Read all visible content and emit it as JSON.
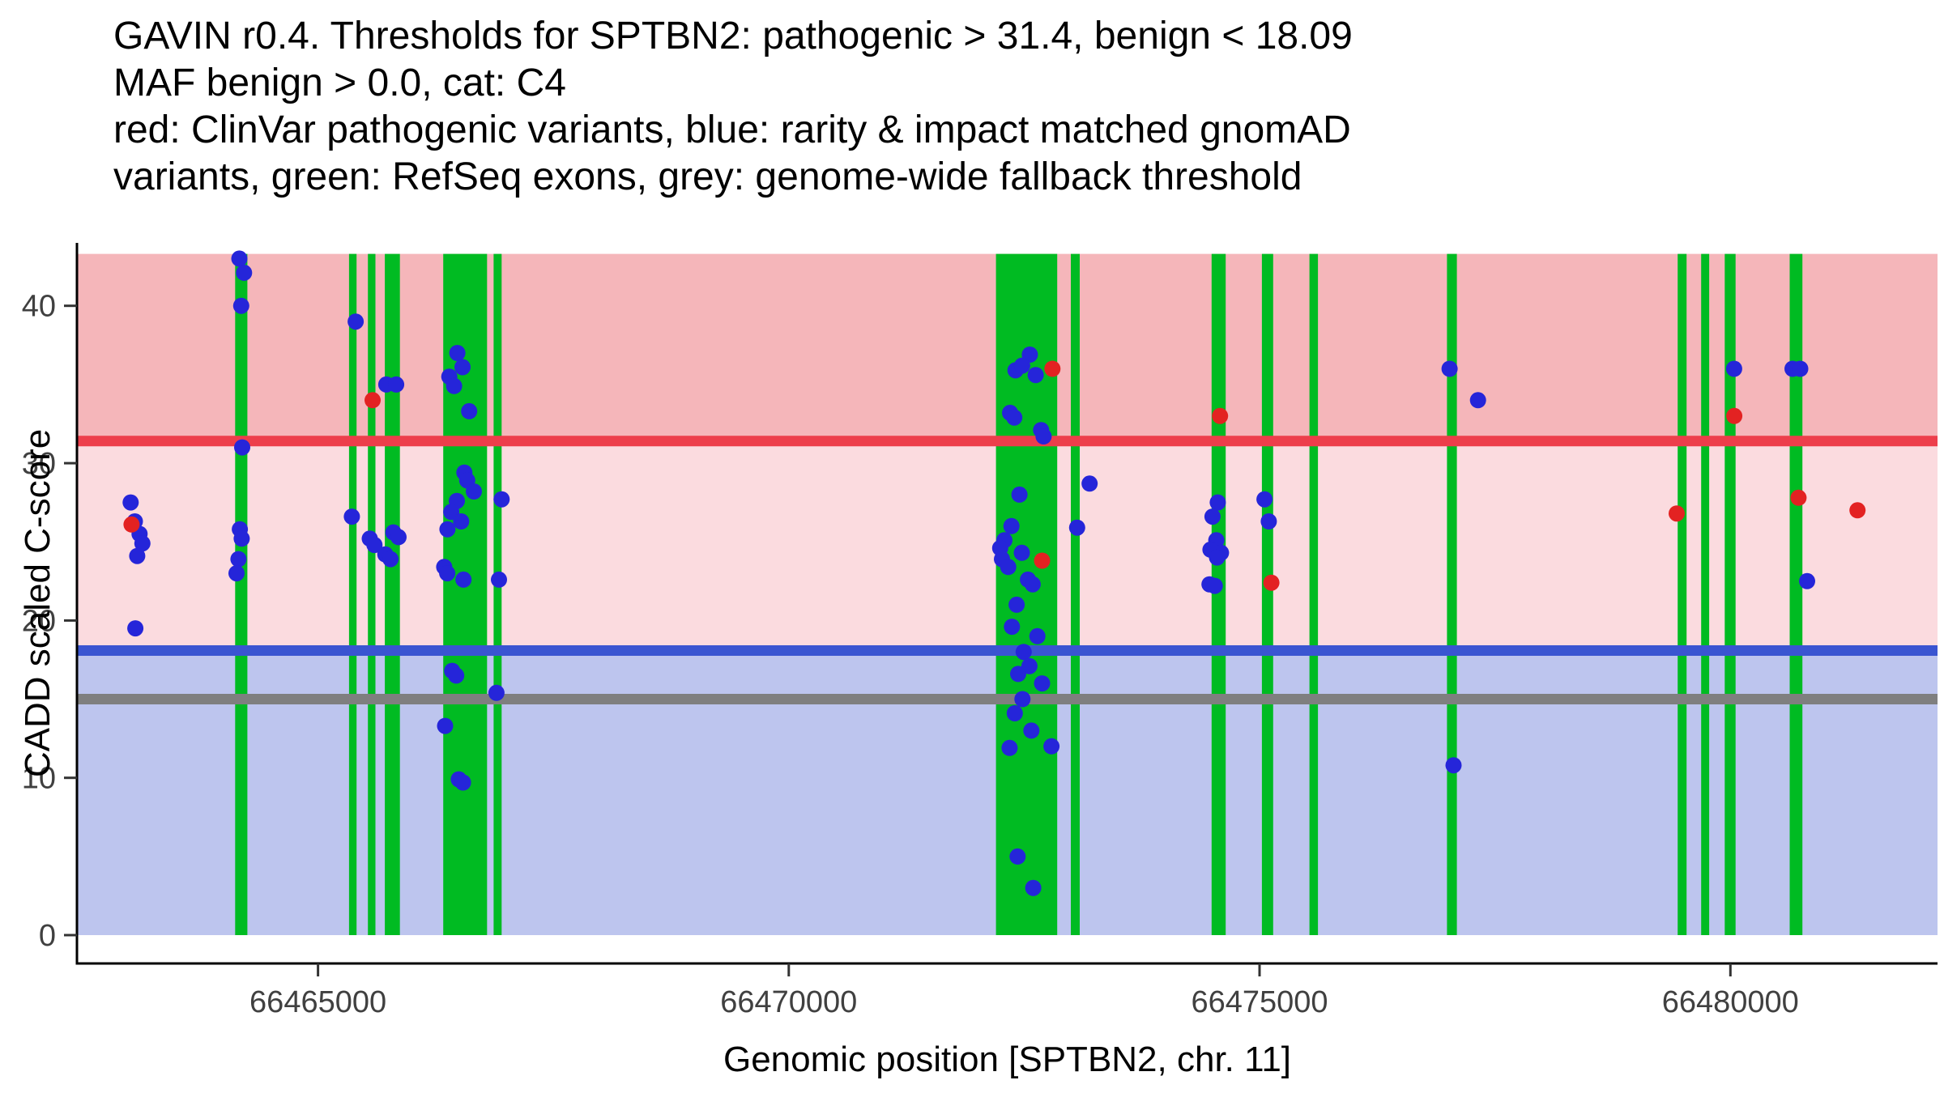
{
  "header": {
    "title_lines": [
      "GAVIN r0.4. Thresholds for SPTBN2: pathogenic > 31.4, benign < 18.09",
      "MAF benign > 0.0, cat: C4",
      "red: ClinVar pathogenic variants, blue: rarity & impact matched gnomAD",
      "variants, green: RefSeq exons, grey: genome-wide fallback threshold"
    ]
  },
  "chart_data": {
    "type": "scatter",
    "title": "GAVIN r0.4. Thresholds for SPTBN2: pathogenic > 31.4, benign < 18.09",
    "subtitle": "MAF benign > 0.0, cat: C4",
    "xlabel": "Genomic position [SPTBN2, chr. 11]",
    "ylabel": "CADD scaled C-score",
    "xlim": [
      66462440,
      66482200
    ],
    "ylim": [
      -1.8,
      44.0
    ],
    "region_top": 43.3,
    "grid": false,
    "legend": "none",
    "x_ticks": [
      {
        "value": 66465000,
        "label": "66465000"
      },
      {
        "value": 66470000,
        "label": "66470000"
      },
      {
        "value": 66475000,
        "label": "66475000"
      },
      {
        "value": 66480000,
        "label": "66480000"
      }
    ],
    "y_ticks": [
      {
        "value": 0,
        "label": "0"
      },
      {
        "value": 10,
        "label": "10"
      },
      {
        "value": 20,
        "label": "20"
      },
      {
        "value": 30,
        "label": "30"
      },
      {
        "value": 40,
        "label": "40"
      }
    ],
    "regions": [
      {
        "name": "pathogenic-zone",
        "from": 31.4,
        "to": 43.3,
        "color": "#f5b6ba"
      },
      {
        "name": "vus-zone",
        "from": 18.09,
        "to": 31.4,
        "color": "#fbdbdf"
      },
      {
        "name": "benign-zone",
        "from": 0,
        "to": 18.09,
        "color": "#bdc5ee"
      }
    ],
    "thresholds": [
      {
        "name": "genome-wide-fallback",
        "label": "genome-wide fallback threshold",
        "value": 15.0,
        "color": "#7f7f7f"
      },
      {
        "name": "benign",
        "label": "benign < 18.09",
        "value": 18.09,
        "color": "#3a55d1"
      },
      {
        "name": "pathogenic",
        "label": "pathogenic > 31.4",
        "value": 31.4,
        "color": "#ed3e4b"
      }
    ],
    "exons": [
      [
        66464120,
        66464250
      ],
      [
        66465330,
        66465410
      ],
      [
        66465530,
        66465610
      ],
      [
        66465710,
        66465870
      ],
      [
        66466330,
        66466795
      ],
      [
        66466865,
        66466950
      ],
      [
        66472200,
        66472850
      ],
      [
        66472995,
        66473090
      ],
      [
        66474490,
        66474640
      ],
      [
        66475025,
        66475145
      ],
      [
        66475530,
        66475620
      ],
      [
        66476990,
        66477095
      ],
      [
        66479440,
        66479535
      ],
      [
        66479690,
        66479775
      ],
      [
        66479940,
        66480055
      ],
      [
        66480630,
        66480765
      ]
    ],
    "series": [
      {
        "id": "gnomad",
        "name": "rarity & impact matched gnomAD variants",
        "color": "#2525d9",
        "points": [
          [
            66463010,
            27.5
          ],
          [
            66463055,
            26.3
          ],
          [
            66463105,
            25.5
          ],
          [
            66463135,
            24.9
          ],
          [
            66463080,
            24.1
          ],
          [
            66463060,
            19.5
          ],
          [
            66464165,
            43.0
          ],
          [
            66464215,
            42.1
          ],
          [
            66464185,
            40.0
          ],
          [
            66464195,
            31.0
          ],
          [
            66464170,
            25.8
          ],
          [
            66464190,
            25.2
          ],
          [
            66464155,
            23.9
          ],
          [
            66464135,
            23.0
          ],
          [
            66465400,
            39.0
          ],
          [
            66465360,
            26.6
          ],
          [
            66465550,
            25.2
          ],
          [
            66465600,
            24.8
          ],
          [
            66465725,
            35.0
          ],
          [
            66465830,
            35.0
          ],
          [
            66465800,
            25.6
          ],
          [
            66465855,
            25.3
          ],
          [
            66465715,
            24.2
          ],
          [
            66465770,
            23.9
          ],
          [
            66466395,
            35.5
          ],
          [
            66466480,
            37.0
          ],
          [
            66466535,
            36.1
          ],
          [
            66466445,
            34.9
          ],
          [
            66466605,
            33.3
          ],
          [
            66466555,
            29.4
          ],
          [
            66466585,
            28.9
          ],
          [
            66466655,
            28.2
          ],
          [
            66466475,
            27.6
          ],
          [
            66466415,
            26.9
          ],
          [
            66466520,
            26.3
          ],
          [
            66466375,
            25.8
          ],
          [
            66466340,
            23.4
          ],
          [
            66466372,
            23.0
          ],
          [
            66466545,
            22.6
          ],
          [
            66466425,
            16.8
          ],
          [
            66466468,
            16.5
          ],
          [
            66466350,
            13.3
          ],
          [
            66466495,
            9.9
          ],
          [
            66466540,
            9.7
          ],
          [
            66466950,
            27.7
          ],
          [
            66466922,
            22.6
          ],
          [
            66466895,
            15.4
          ],
          [
            66472560,
            36.9
          ],
          [
            66472408,
            35.9
          ],
          [
            66472478,
            36.2
          ],
          [
            66472622,
            35.6
          ],
          [
            66472350,
            33.2
          ],
          [
            66472395,
            32.9
          ],
          [
            66472680,
            32.1
          ],
          [
            66472706,
            31.7
          ],
          [
            66472450,
            28.0
          ],
          [
            66472365,
            26.0
          ],
          [
            66472290,
            25.1
          ],
          [
            66472245,
            24.6
          ],
          [
            66472475,
            24.3
          ],
          [
            66472264,
            23.9
          ],
          [
            66472330,
            23.4
          ],
          [
            66472540,
            22.6
          ],
          [
            66472590,
            22.3
          ],
          [
            66472420,
            21.0
          ],
          [
            66472370,
            19.6
          ],
          [
            66472640,
            19.0
          ],
          [
            66472495,
            18.0
          ],
          [
            66472556,
            17.1
          ],
          [
            66472436,
            16.6
          ],
          [
            66472690,
            16.0
          ],
          [
            66472482,
            15.0
          ],
          [
            66472400,
            14.1
          ],
          [
            66472576,
            13.0
          ],
          [
            66472790,
            12.0
          ],
          [
            66472345,
            11.9
          ],
          [
            66472430,
            5.0
          ],
          [
            66472596,
            3.0
          ],
          [
            66473062,
            25.9
          ],
          [
            66473195,
            28.7
          ],
          [
            66474556,
            27.5
          ],
          [
            66474500,
            26.6
          ],
          [
            66474540,
            25.1
          ],
          [
            66474478,
            24.5
          ],
          [
            66474590,
            24.3
          ],
          [
            66474548,
            24.0
          ],
          [
            66474468,
            22.3
          ],
          [
            66474524,
            22.2
          ],
          [
            66475052,
            27.7
          ],
          [
            66475098,
            26.3
          ],
          [
            66477018,
            36.0
          ],
          [
            66477060,
            10.8
          ],
          [
            66477320,
            34.0
          ],
          [
            66480040,
            36.0
          ],
          [
            66480660,
            36.0
          ],
          [
            66480742,
            36.0
          ],
          [
            66480815,
            22.5
          ]
        ]
      },
      {
        "id": "clinvar",
        "name": "ClinVar pathogenic variants",
        "color": "#e32222",
        "points": [
          [
            66463020,
            26.1
          ],
          [
            66465580,
            34.0
          ],
          [
            66472800,
            36.0
          ],
          [
            66472690,
            23.8
          ],
          [
            66474580,
            33.0
          ],
          [
            66475125,
            22.4
          ],
          [
            66479430,
            26.8
          ],
          [
            66480042,
            33.0
          ],
          [
            66480724,
            27.8
          ],
          [
            66481350,
            27.0
          ]
        ]
      }
    ],
    "colors": {
      "exon": "#00bb22",
      "axis": "#000000",
      "tick": "#333333",
      "tick_label": "#404040",
      "background": "#ffffff"
    }
  }
}
